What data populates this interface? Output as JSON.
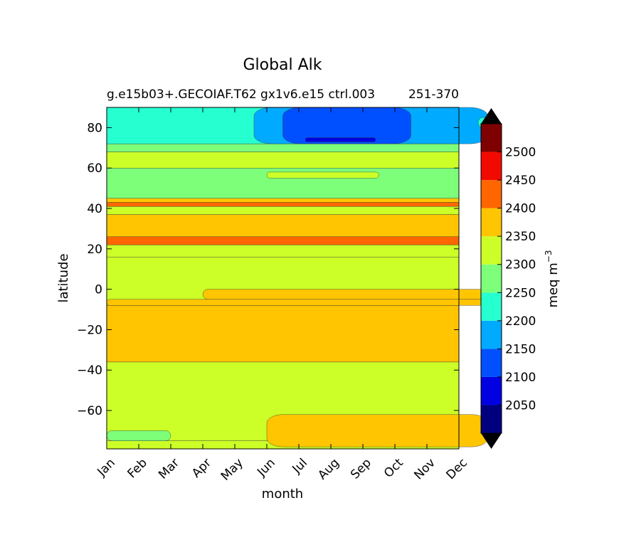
{
  "chart_data": {
    "type": "heatmap",
    "title": "Global Alk",
    "subtitle": "g.e15b03+.GECOIAF.T62 gx1v6.e15 ctrl.003",
    "subtitle_right": "251-370",
    "xlabel": "month",
    "ylabel": "latitude",
    "x_categories": [
      "Jan",
      "Feb",
      "Mar",
      "Apr",
      "May",
      "Jun",
      "Jul",
      "Aug",
      "Sep",
      "Oct",
      "Nov",
      "Dec"
    ],
    "y_ticks": [
      80,
      60,
      40,
      20,
      0,
      -20,
      -40,
      -60
    ],
    "ylim": [
      -79,
      90
    ],
    "colorbar": {
      "label": "meq m",
      "label_superscript": "−3",
      "ticks": [
        2500,
        2450,
        2400,
        2350,
        2300,
        2250,
        2200,
        2150,
        2100,
        2050
      ],
      "levels": [
        2000,
        2050,
        2100,
        2150,
        2200,
        2250,
        2300,
        2350,
        2400,
        2450,
        2500,
        2550
      ],
      "colors": [
        "#00007f",
        "#0000e0",
        "#0050ff",
        "#00aaff",
        "#26ffd0",
        "#7dff7a",
        "#ccff27",
        "#ffc500",
        "#ff6600",
        "#f20a00",
        "#7f0000"
      ],
      "under_color": "#000000",
      "over_color": "#000000",
      "extend": "both"
    },
    "bands": [
      {
        "lat": [
          -79,
          -75
        ],
        "level": 2300
      },
      {
        "lat": [
          -75,
          -36
        ],
        "level": 2300
      },
      {
        "lat": [
          -36,
          -8
        ],
        "level": 2350
      },
      {
        "lat": [
          -8,
          16
        ],
        "level": 2300
      },
      {
        "lat": [
          16,
          22
        ],
        "level": 2300
      },
      {
        "lat": [
          22,
          26
        ],
        "level": 2400
      },
      {
        "lat": [
          26,
          37
        ],
        "level": 2350
      },
      {
        "lat": [
          37,
          41
        ],
        "level": 2300
      },
      {
        "lat": [
          41,
          43
        ],
        "level": 2400
      },
      {
        "lat": [
          43,
          45
        ],
        "level": 2350
      },
      {
        "lat": [
          45,
          60
        ],
        "level": 2250
      },
      {
        "lat": [
          60,
          68
        ],
        "level": 2300
      },
      {
        "lat": [
          68,
          72
        ],
        "level": 2250
      },
      {
        "lat": [
          72,
          90
        ],
        "level": 2200
      }
    ],
    "features": [
      {
        "months": [
          0,
          2.0
        ],
        "lat": [
          -75,
          -70
        ],
        "level": 2250
      },
      {
        "months": [
          5.0,
          11.9
        ],
        "lat": [
          -78,
          -62
        ],
        "level": 2350
      },
      {
        "months": [
          3.0,
          11.9
        ],
        "lat": [
          -5,
          0
        ],
        "level": 2350
      },
      {
        "months": [
          0,
          11.9
        ],
        "lat": [
          -8,
          -5
        ],
        "level": 2350
      },
      {
        "months": [
          5.0,
          8.5
        ],
        "lat": [
          55,
          58
        ],
        "level": 2300
      },
      {
        "months": [
          4.6,
          11.9
        ],
        "lat": [
          72,
          90
        ],
        "level": 2150
      },
      {
        "months": [
          5.5,
          9.5
        ],
        "lat": [
          72,
          90
        ],
        "level": 2100
      },
      {
        "months": [
          6.2,
          8.4
        ],
        "lat": [
          73,
          75
        ],
        "level": 2050
      },
      {
        "months": [
          11.6,
          11.9
        ],
        "lat": [
          80,
          85
        ],
        "level": 2200
      }
    ]
  }
}
